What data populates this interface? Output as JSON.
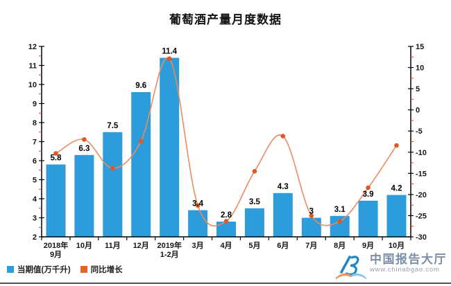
{
  "title": "葡萄酒产量月度数据",
  "chart_data": {
    "type": "combo-bar-line",
    "title": "葡萄酒产量月度数据",
    "categories": [
      [
        "2018年",
        "9月"
      ],
      [
        "10月"
      ],
      [
        "11月"
      ],
      [
        "12月"
      ],
      [
        "2019年",
        "1-2月"
      ],
      [
        "3月"
      ],
      [
        "4月"
      ],
      [
        "5月"
      ],
      [
        "6月"
      ],
      [
        "7月"
      ],
      [
        "8月"
      ],
      [
        "9月"
      ],
      [
        "10月"
      ]
    ],
    "series": [
      {
        "name": "当期值(万千升)",
        "type": "bar",
        "axis": "left",
        "values": [
          5.8,
          6.3,
          7.5,
          9.6,
          11.4,
          3.4,
          2.8,
          3.5,
          4.3,
          3,
          3.1,
          3.9,
          4.2
        ],
        "labels": [
          "5.8",
          "6.3",
          "7.5",
          "9.6",
          "11.4",
          "3.4",
          "2.8",
          "3.5",
          "4.3",
          "3",
          "3.1",
          "3.9",
          "4.2"
        ],
        "color": "#2D9CDB"
      },
      {
        "name": "同比增长",
        "type": "line",
        "axis": "right",
        "values": [
          -10.3,
          -7.0,
          -13.8,
          -7.4,
          12.1,
          -22.6,
          -26.3,
          -14.5,
          -6.2,
          -25.0,
          -26.3,
          -18.4,
          -8.4
        ],
        "color": "#EC8A62",
        "marker_color": "#DD5A28",
        "smoothed": true
      }
    ],
    "left_axis": {
      "min": 2,
      "max": 12,
      "step": 1,
      "ticks": [
        2,
        3,
        4,
        5,
        6,
        7,
        8,
        9,
        10,
        11,
        12
      ]
    },
    "right_axis": {
      "min": -30,
      "max": 15,
      "step": 5,
      "ticks": [
        -30,
        -25,
        -20,
        -15,
        -10,
        -5,
        0,
        5,
        10,
        15
      ]
    },
    "grid": false,
    "legend_position": "bottom-left",
    "data_labels": "bar-series-only"
  },
  "legend": {
    "items": [
      {
        "label": "当期值(万千升)",
        "color": "#2D9CDB"
      },
      {
        "label": "同比增长",
        "color": "#E4632A"
      }
    ]
  },
  "watermark": {
    "name": "中国报告大厅",
    "url": "www.chinabgao.com"
  },
  "colors": {
    "bar": "#2D9CDB",
    "line": "#EC8A62",
    "marker": "#DD5A28",
    "axis": "#000000",
    "minor_tick": "#E8392B",
    "logo_blue": "#1E88C7",
    "logo_book_left": "#F0945F",
    "logo_book_right": "#8CC6E9",
    "logo_text": "#7C8EA6",
    "logo_url": "#98A0AA"
  }
}
